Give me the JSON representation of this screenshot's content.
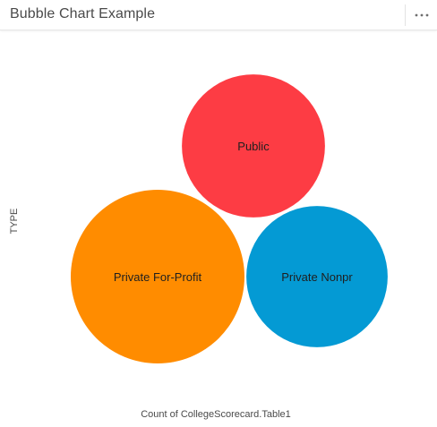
{
  "panel": {
    "title": "Bubble Chart Example",
    "menu_icon": "more-horizontal-icon"
  },
  "chart_data": {
    "type": "bubble",
    "title": "",
    "ylabel": "TYPE",
    "xlabel": "Count of CollegeScorecard.Table1",
    "categories": [
      "Public",
      "Private For-Profit",
      "Private Nonprofit"
    ],
    "labels": [
      "Public",
      "Private For-Profit",
      "Private Nonpr"
    ],
    "values": [
      2000,
      2950,
      1950
    ],
    "colors": [
      "#fd3c44",
      "#ff8c00",
      "#049ad4"
    ]
  }
}
